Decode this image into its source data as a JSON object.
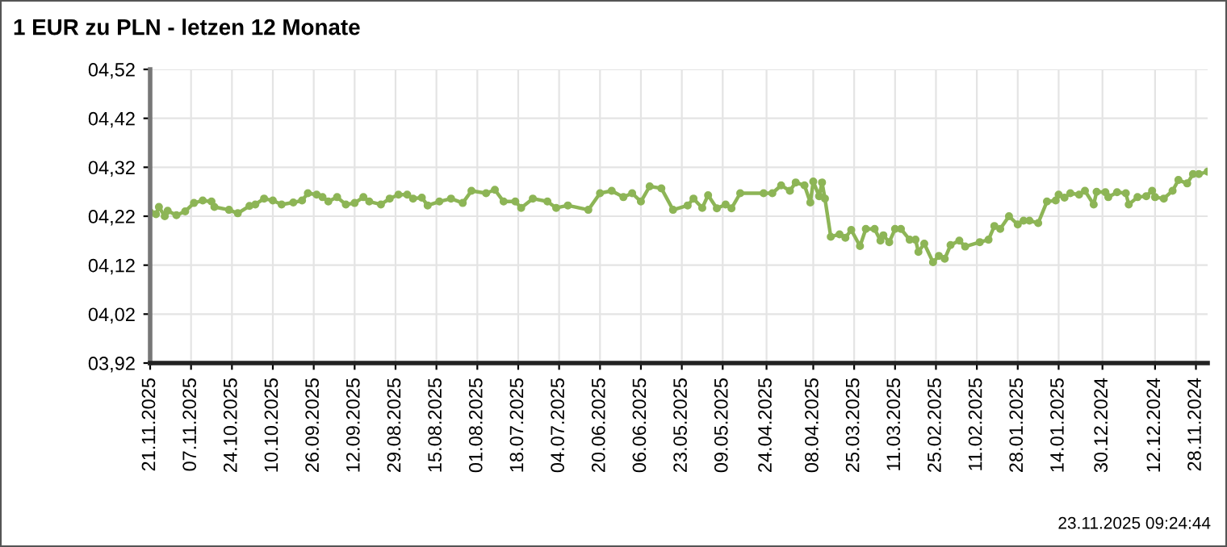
{
  "chart_data": {
    "type": "line",
    "title": "1 EUR zu PLN - letzen 12 Monate",
    "annotations": [
      "23.11.2025 09:24:44"
    ],
    "marker": "circle",
    "line_style": "solid",
    "grid": true,
    "legend": false,
    "xlim": [
      "2025-11-21",
      "2024-11-24"
    ],
    "ylim": [
      3.92,
      4.52
    ],
    "yticks": [
      {
        "value": 3.92,
        "label": "03,92"
      },
      {
        "value": 4.02,
        "label": "04,02"
      },
      {
        "value": 4.12,
        "label": "04,12"
      },
      {
        "value": 4.22,
        "label": "04,22"
      },
      {
        "value": 4.32,
        "label": "04,32"
      },
      {
        "value": 4.42,
        "label": "04,42"
      },
      {
        "value": 4.52,
        "label": "04,52"
      }
    ],
    "xticks": [
      {
        "value": "2025-11-21",
        "label": "21.11.2025"
      },
      {
        "value": "2025-11-07",
        "label": "07.11.2025"
      },
      {
        "value": "2025-10-24",
        "label": "24.10.2025"
      },
      {
        "value": "2025-10-10",
        "label": "10.10.2025"
      },
      {
        "value": "2025-09-26",
        "label": "26.09.2025"
      },
      {
        "value": "2025-09-12",
        "label": "12.09.2025"
      },
      {
        "value": "2025-08-29",
        "label": "29.08.2025"
      },
      {
        "value": "2025-08-15",
        "label": "15.08.2025"
      },
      {
        "value": "2025-08-01",
        "label": "01.08.2025"
      },
      {
        "value": "2025-07-18",
        "label": "18.07.2025"
      },
      {
        "value": "2025-07-04",
        "label": "04.07.2025"
      },
      {
        "value": "2025-06-20",
        "label": "20.06.2025"
      },
      {
        "value": "2025-06-06",
        "label": "06.06.2025"
      },
      {
        "value": "2025-05-23",
        "label": "23.05.2025"
      },
      {
        "value": "2025-05-09",
        "label": "09.05.2025"
      },
      {
        "value": "2025-04-24",
        "label": "24.04.2025"
      },
      {
        "value": "2025-04-08",
        "label": "08.04.2025"
      },
      {
        "value": "2025-03-25",
        "label": "25.03.2025"
      },
      {
        "value": "2025-03-11",
        "label": "11.03.2025"
      },
      {
        "value": "2025-02-25",
        "label": "25.02.2025"
      },
      {
        "value": "2025-02-11",
        "label": "11.02.2025"
      },
      {
        "value": "2025-01-28",
        "label": "28.01.2025"
      },
      {
        "value": "2025-01-14",
        "label": "14.01.2025"
      },
      {
        "value": "2024-12-30",
        "label": "30.12.2024"
      },
      {
        "value": "2024-12-12",
        "label": "12.12.2024"
      },
      {
        "value": "2024-11-28",
        "label": "28.11.2024"
      }
    ],
    "series": [
      {
        "color": "#8db556",
        "x": [
          "2025-11-21",
          "2025-11-19",
          "2025-11-18",
          "2025-11-16",
          "2025-11-15",
          "2025-11-12",
          "2025-11-09",
          "2025-11-06",
          "2025-11-03",
          "2025-10-31",
          "2025-10-30",
          "2025-10-25",
          "2025-10-22",
          "2025-10-18",
          "2025-10-16",
          "2025-10-13",
          "2025-10-10",
          "2025-10-07",
          "2025-10-03",
          "2025-09-30",
          "2025-09-28",
          "2025-09-25",
          "2025-09-23",
          "2025-09-21",
          "2025-09-18",
          "2025-09-15",
          "2025-09-12",
          "2025-09-09",
          "2025-09-07",
          "2025-09-03",
          "2025-08-31",
          "2025-08-28",
          "2025-08-25",
          "2025-08-23",
          "2025-08-20",
          "2025-08-18",
          "2025-08-14",
          "2025-08-10",
          "2025-08-06",
          "2025-08-03",
          "2025-07-29",
          "2025-07-26",
          "2025-07-23",
          "2025-07-19",
          "2025-07-17",
          "2025-07-13",
          "2025-07-08",
          "2025-07-05",
          "2025-07-01",
          "2025-06-24",
          "2025-06-20",
          "2025-06-16",
          "2025-06-12",
          "2025-06-09",
          "2025-06-06",
          "2025-06-03",
          "2025-05-30",
          "2025-05-26",
          "2025-05-21",
          "2025-05-19",
          "2025-05-16",
          "2025-05-14",
          "2025-05-11",
          "2025-05-08",
          "2025-05-06",
          "2025-05-03",
          "2025-04-25",
          "2025-04-22",
          "2025-04-19",
          "2025-04-16",
          "2025-04-14",
          "2025-04-11",
          "2025-04-09",
          "2025-04-08",
          "2025-04-06",
          "2025-04-05",
          "2025-04-04",
          "2025-04-02",
          "2025-03-30",
          "2025-03-28",
          "2025-03-26",
          "2025-03-23",
          "2025-03-21",
          "2025-03-18",
          "2025-03-16",
          "2025-03-15",
          "2025-03-13",
          "2025-03-11",
          "2025-03-09",
          "2025-03-06",
          "2025-03-04",
          "2025-03-03",
          "2025-03-01",
          "2025-02-26",
          "2025-02-24",
          "2025-02-22",
          "2025-02-20",
          "2025-02-17",
          "2025-02-15",
          "2025-02-10",
          "2025-02-07",
          "2025-02-05",
          "2025-02-03",
          "2025-01-31",
          "2025-01-28",
          "2025-01-26",
          "2025-01-24",
          "2025-01-21",
          "2025-01-18",
          "2025-01-15",
          "2025-01-14",
          "2025-01-12",
          "2025-01-10",
          "2025-01-07",
          "2025-01-05",
          "2025-01-02",
          "2025-01-01",
          "2024-12-29",
          "2024-12-28",
          "2024-12-25",
          "2024-12-22",
          "2024-12-21",
          "2024-12-18",
          "2024-12-15",
          "2024-12-13",
          "2024-12-12",
          "2024-12-09",
          "2024-12-06",
          "2024-12-04",
          "2024-12-01",
          "2024-11-29",
          "2024-11-27",
          "2024-11-24"
        ],
        "values": [
          4.228,
          4.224,
          4.239,
          4.22,
          4.231,
          4.222,
          4.23,
          4.247,
          4.252,
          4.25,
          4.239,
          4.233,
          4.226,
          4.241,
          4.244,
          4.256,
          4.252,
          4.244,
          4.248,
          4.252,
          4.267,
          4.264,
          4.259,
          4.25,
          4.259,
          4.244,
          4.247,
          4.259,
          4.25,
          4.244,
          4.256,
          4.264,
          4.264,
          4.256,
          4.258,
          4.242,
          4.25,
          4.256,
          4.247,
          4.272,
          4.267,
          4.274,
          4.25,
          4.25,
          4.237,
          4.256,
          4.25,
          4.237,
          4.242,
          4.233,
          4.267,
          4.272,
          4.259,
          4.267,
          4.25,
          4.281,
          4.277,
          4.233,
          4.242,
          4.256,
          4.237,
          4.263,
          4.236,
          4.244,
          4.236,
          4.267,
          4.267,
          4.267,
          4.283,
          4.272,
          4.289,
          4.283,
          4.248,
          4.291,
          4.261,
          4.289,
          4.256,
          4.178,
          4.183,
          4.176,
          4.192,
          4.159,
          4.194,
          4.194,
          4.17,
          4.181,
          4.167,
          4.194,
          4.194,
          4.172,
          4.172,
          4.147,
          4.164,
          4.126,
          4.139,
          4.133,
          4.161,
          4.17,
          4.158,
          4.167,
          4.172,
          4.2,
          4.194,
          4.22,
          4.203,
          4.211,
          4.211,
          4.206,
          4.25,
          4.252,
          4.264,
          4.258,
          4.267,
          4.264,
          4.272,
          4.244,
          4.27,
          4.269,
          4.259,
          4.269,
          4.267,
          4.244,
          4.259,
          4.261,
          4.272,
          4.259,
          4.256,
          4.272,
          4.294,
          4.287,
          4.306,
          4.306,
          4.311
        ]
      }
    ]
  }
}
